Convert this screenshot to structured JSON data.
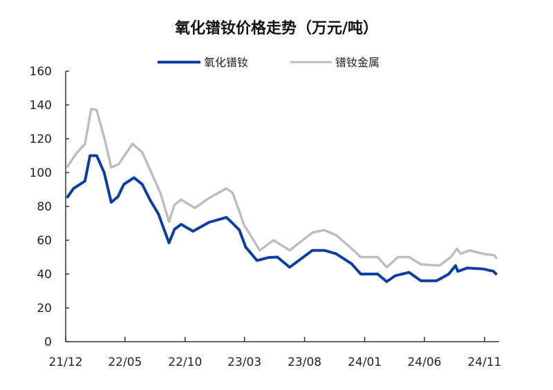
{
  "chart_data": {
    "type": "line",
    "title": "氧化镨钕价格走势（万元/吨）",
    "xlabel": "",
    "ylabel": "",
    "ylim": [
      0,
      160
    ],
    "yticks": [
      0,
      20,
      40,
      60,
      80,
      100,
      120,
      140,
      160
    ],
    "xlim": [
      "2021-12-01",
      "2024-12-08"
    ],
    "xticks": [
      {
        "date": "2021-12-01",
        "label": "21/12"
      },
      {
        "date": "2022-05-01",
        "label": "22/05"
      },
      {
        "date": "2022-10-01",
        "label": "22/10"
      },
      {
        "date": "2023-03-01",
        "label": "23/03"
      },
      {
        "date": "2023-08-01",
        "label": "23/08"
      },
      {
        "date": "2024-01-01",
        "label": "24/01"
      },
      {
        "date": "2024-06-01",
        "label": "24/06"
      },
      {
        "date": "2024-11-01",
        "label": "24/11"
      }
    ],
    "grid": false,
    "legend_position": "top",
    "series": [
      {
        "name": "氧化镨钕",
        "color": "#0B3EA0",
        "points": [
          [
            "2021-12-04",
            85
          ],
          [
            "2021-12-21",
            90.6
          ],
          [
            "2022-01-19",
            95
          ],
          [
            "2022-02-01",
            110
          ],
          [
            "2022-02-18",
            110
          ],
          [
            "2022-03-09",
            100
          ],
          [
            "2022-03-27",
            82.4
          ],
          [
            "2022-04-13",
            85.7
          ],
          [
            "2022-04-28",
            93
          ],
          [
            "2022-05-24",
            97
          ],
          [
            "2022-06-14",
            93
          ],
          [
            "2022-07-04",
            83.7
          ],
          [
            "2022-07-25",
            75.5
          ],
          [
            "2022-08-21",
            58.4
          ],
          [
            "2022-09-04",
            66.5
          ],
          [
            "2022-09-21",
            69.4
          ],
          [
            "2022-10-21",
            65.3
          ],
          [
            "2022-12-01",
            70.6
          ],
          [
            "2023-01-14",
            73.5
          ],
          [
            "2023-01-30",
            70
          ],
          [
            "2023-02-16",
            66
          ],
          [
            "2023-03-04",
            56
          ],
          [
            "2023-04-02",
            48
          ],
          [
            "2023-05-02",
            49.8
          ],
          [
            "2023-05-24",
            50
          ],
          [
            "2023-06-24",
            44
          ],
          [
            "2023-08-21",
            54
          ],
          [
            "2023-09-20",
            54
          ],
          [
            "2023-10-20",
            52
          ],
          [
            "2023-11-29",
            46
          ],
          [
            "2023-12-22",
            40
          ],
          [
            "2024-02-03",
            40
          ],
          [
            "2024-02-26",
            35.5
          ],
          [
            "2024-03-19",
            39
          ],
          [
            "2024-04-23",
            41
          ],
          [
            "2024-05-23",
            36
          ],
          [
            "2024-07-02",
            36
          ],
          [
            "2024-08-02",
            40
          ],
          [
            "2024-08-19",
            45
          ],
          [
            "2024-08-25",
            41.6
          ],
          [
            "2024-09-18",
            43.6
          ],
          [
            "2024-10-28",
            43
          ],
          [
            "2024-11-24",
            41.6
          ],
          [
            "2024-12-02",
            39.6
          ]
        ]
      },
      {
        "name": "镨钕金属",
        "color": "#BDBDBD",
        "points": [
          [
            "2021-12-04",
            103
          ],
          [
            "2021-12-27",
            111
          ],
          [
            "2022-01-19",
            117
          ],
          [
            "2022-02-04",
            137.6
          ],
          [
            "2022-02-18",
            137
          ],
          [
            "2022-03-11",
            119
          ],
          [
            "2022-03-27",
            103
          ],
          [
            "2022-04-15",
            105
          ],
          [
            "2022-05-20",
            117
          ],
          [
            "2022-06-14",
            112
          ],
          [
            "2022-07-07",
            100
          ],
          [
            "2022-07-30",
            88
          ],
          [
            "2022-08-21",
            71
          ],
          [
            "2022-09-04",
            81
          ],
          [
            "2022-09-21",
            84
          ],
          [
            "2022-10-26",
            79
          ],
          [
            "2022-12-01",
            85
          ],
          [
            "2023-01-14",
            90.6
          ],
          [
            "2023-01-30",
            88
          ],
          [
            "2023-02-28",
            69
          ],
          [
            "2023-04-09",
            54
          ],
          [
            "2023-05-14",
            60
          ],
          [
            "2023-06-24",
            54
          ],
          [
            "2023-08-21",
            64.5
          ],
          [
            "2023-09-20",
            66
          ],
          [
            "2023-10-20",
            63
          ],
          [
            "2023-12-04",
            54
          ],
          [
            "2023-12-22",
            50
          ],
          [
            "2024-02-03",
            50
          ],
          [
            "2024-02-26",
            44
          ],
          [
            "2024-03-26",
            50
          ],
          [
            "2024-04-23",
            50
          ],
          [
            "2024-05-23",
            45.7
          ],
          [
            "2024-07-09",
            45
          ],
          [
            "2024-08-07",
            50
          ],
          [
            "2024-08-23",
            55
          ],
          [
            "2024-09-01",
            52
          ],
          [
            "2024-09-24",
            54
          ],
          [
            "2024-10-28",
            52
          ],
          [
            "2024-11-27",
            51
          ],
          [
            "2024-12-02",
            49
          ]
        ]
      }
    ]
  }
}
